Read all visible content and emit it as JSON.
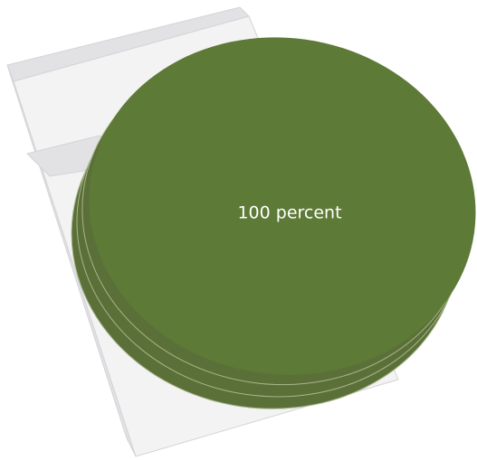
{
  "chart_data": {
    "type": "pie",
    "slices": [
      {
        "label": "100 percent",
        "value": 100
      }
    ],
    "colors": {
      "slice": "#5d7a37",
      "slice_side": "#5b7039",
      "slice_edge": "#a7b58a",
      "box_face": "#f3f3f4",
      "box_side": "#e2e2e5",
      "box_edge": "#d4d4d8"
    }
  }
}
